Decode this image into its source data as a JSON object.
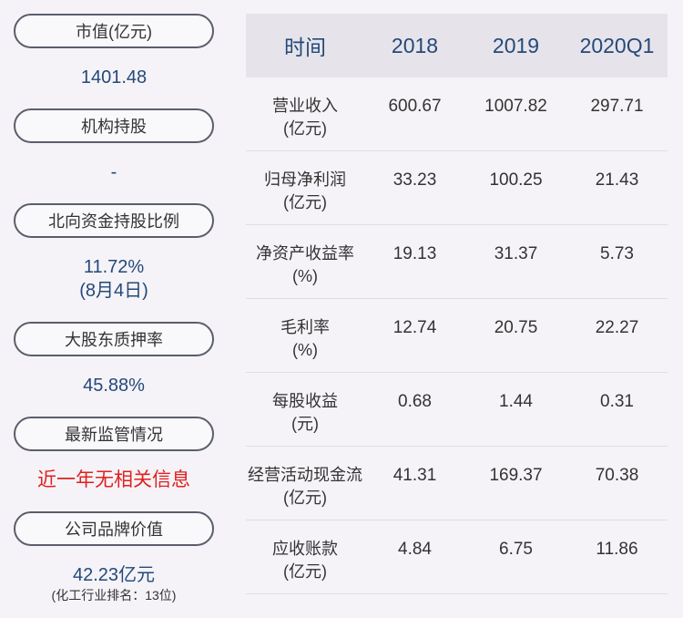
{
  "left_panel": {
    "items": [
      {
        "label": "市值(亿元)",
        "value": "1401.48"
      },
      {
        "label": "机构持股",
        "value": "-"
      },
      {
        "label": "北向资金持股比例",
        "value": "11.72%",
        "value2": "(8月4日)"
      },
      {
        "label": "大股东质押率",
        "value": "45.88%"
      },
      {
        "label": "最新监管情况",
        "value": "近一年无相关信息"
      },
      {
        "label": "公司品牌价值",
        "value": "42.23亿元",
        "note": "(化工行业排名：13位)"
      }
    ]
  },
  "table": {
    "headers": [
      "时间",
      "2018",
      "2019",
      "2020Q1"
    ],
    "rows": [
      {
        "label": "营业收入",
        "unit": "(亿元)",
        "values": [
          "600.67",
          "1007.82",
          "297.71"
        ]
      },
      {
        "label": "归母净利润",
        "unit": "(亿元)",
        "values": [
          "33.23",
          "100.25",
          "21.43"
        ]
      },
      {
        "label": "净资产收益率",
        "unit": "(%)",
        "values": [
          "19.13",
          "31.37",
          "5.73"
        ]
      },
      {
        "label": "毛利率",
        "unit": "(%)",
        "values": [
          "12.74",
          "20.75",
          "22.27"
        ]
      },
      {
        "label": "每股收益",
        "unit": "(元)",
        "values": [
          "0.68",
          "1.44",
          "0.31"
        ]
      },
      {
        "label": "经营活动现金流",
        "unit": "(亿元)",
        "values": [
          "41.31",
          "169.37",
          "70.38"
        ]
      },
      {
        "label": "应收账款",
        "unit": "(亿元)",
        "values": [
          "4.84",
          "6.75",
          "11.86"
        ]
      }
    ]
  },
  "colors": {
    "value_blue": "#24497a",
    "alert_red": "#e02020",
    "header_bg": "#e6e4ea",
    "page_bg": "#f5f3f7"
  }
}
